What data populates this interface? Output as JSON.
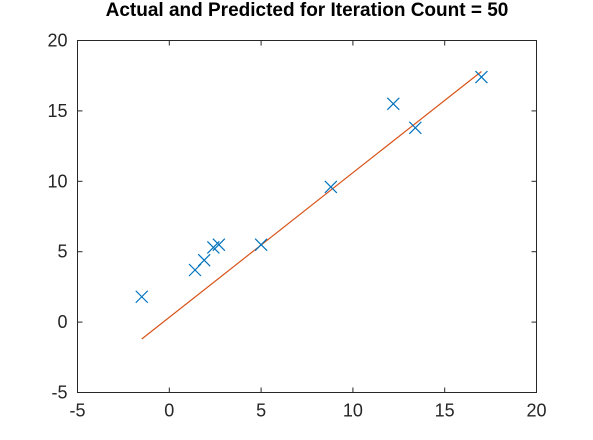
{
  "chart_data": {
    "type": "scatter",
    "title": "Actual and Predicted for Iteration Count = 50",
    "xlabel": "",
    "ylabel": "",
    "xlim": [
      -5,
      20
    ],
    "ylim": [
      -5,
      20
    ],
    "xticks": [
      -5,
      0,
      5,
      10,
      15,
      20
    ],
    "yticks": [
      -5,
      0,
      5,
      10,
      15,
      20
    ],
    "grid": false,
    "series": [
      {
        "kind": "scatter",
        "marker": "x",
        "color": "#0072bd",
        "x": [
          -1.5,
          1.4,
          1.9,
          2.4,
          2.7,
          5.0,
          8.8,
          12.2,
          13.4,
          17.0
        ],
        "y": [
          1.8,
          3.7,
          4.4,
          5.3,
          5.5,
          5.5,
          9.6,
          15.5,
          13.8,
          17.4
        ]
      },
      {
        "kind": "line",
        "color": "#d95319",
        "x": [
          -1.5,
          17.0
        ],
        "y": [
          -1.2,
          17.8
        ]
      }
    ]
  }
}
